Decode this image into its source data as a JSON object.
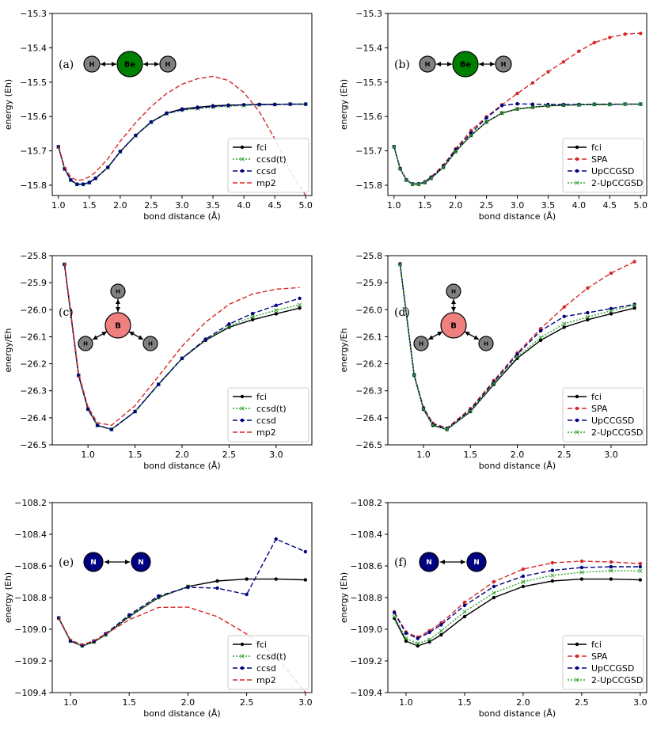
{
  "chart_data": [
    {
      "type": "line",
      "panel_label": "(a)",
      "molecule": "BeH2",
      "atoms": [
        "H",
        "Be",
        "H"
      ],
      "xlabel": "bond distance (Å)",
      "ylabel": "energy (Eh)",
      "xlim": [
        0.9,
        5.1
      ],
      "ylim": [
        -15.83,
        -15.3
      ],
      "xticks": [
        1.0,
        1.5,
        2.0,
        2.5,
        3.0,
        3.5,
        4.0,
        4.5,
        5.0
      ],
      "yticks": [
        -15.8,
        -15.7,
        -15.6,
        -15.5,
        -15.4,
        -15.3
      ],
      "xtick_labels": [
        "1.0",
        "1.5",
        "2.0",
        "2.5",
        "3.0",
        "3.5",
        "4.0",
        "4.5",
        "5.0"
      ],
      "ytick_labels": [
        "−15.8",
        "−15.7",
        "−15.6",
        "−15.5",
        "−15.4",
        "−15.3"
      ],
      "x": [
        1.0,
        1.1,
        1.2,
        1.3,
        1.4,
        1.5,
        1.6,
        1.8,
        2.0,
        2.25,
        2.5,
        2.75,
        3.0,
        3.25,
        3.5,
        3.75,
        4.0,
        4.25,
        4.5,
        4.75,
        5.0
      ],
      "series": [
        {
          "name": "fci",
          "color": "#000000",
          "dash": "",
          "marker": "dot",
          "values": [
            -15.688,
            -15.752,
            -15.785,
            -15.797,
            -15.797,
            -15.792,
            -15.78,
            -15.748,
            -15.702,
            -15.655,
            -15.616,
            -15.59,
            -15.578,
            -15.573,
            -15.569,
            -15.567,
            -15.566,
            -15.565,
            -15.565,
            -15.564,
            -15.564
          ]
        },
        {
          "name": "ccsd(t)",
          "color": "#2ca02c",
          "dash": "2,2",
          "marker": "x",
          "values": [
            -15.689,
            -15.753,
            -15.786,
            -15.798,
            -15.798,
            -15.793,
            -15.781,
            -15.749,
            -15.703,
            -15.656,
            -15.617,
            -15.592,
            -15.582,
            -15.577,
            -15.573,
            -15.57,
            -15.568,
            -15.566,
            -15.565,
            -15.564,
            -15.564
          ]
        },
        {
          "name": "ccsd",
          "color": "#000080",
          "dash": "6,3",
          "marker": "dot",
          "values": [
            -15.688,
            -15.752,
            -15.785,
            -15.797,
            -15.797,
            -15.792,
            -15.78,
            -15.748,
            -15.702,
            -15.655,
            -15.616,
            -15.591,
            -15.58,
            -15.575,
            -15.571,
            -15.568,
            -15.566,
            -15.565,
            -15.565,
            -15.564,
            -15.564
          ]
        },
        {
          "name": "mp2",
          "color": "#d62728",
          "dash": "6,3",
          "marker": "none",
          "values": [
            -15.686,
            -15.748,
            -15.776,
            -15.786,
            -15.784,
            -15.776,
            -15.762,
            -15.723,
            -15.672,
            -15.618,
            -15.571,
            -15.533,
            -15.506,
            -15.49,
            -15.483,
            -15.495,
            -15.53,
            -15.586,
            -15.665,
            -15.76,
            -15.83
          ]
        }
      ]
    },
    {
      "type": "line",
      "panel_label": "(b)",
      "molecule": "BeH2",
      "atoms": [
        "H",
        "Be",
        "H"
      ],
      "xlabel": "bond distance (Å)",
      "ylabel": "energy (Eh)",
      "xlim": [
        0.9,
        5.1
      ],
      "ylim": [
        -15.83,
        -15.3
      ],
      "xticks": [
        1.0,
        1.5,
        2.0,
        2.5,
        3.0,
        3.5,
        4.0,
        4.5,
        5.0
      ],
      "yticks": [
        -15.8,
        -15.7,
        -15.6,
        -15.5,
        -15.4,
        -15.3
      ],
      "xtick_labels": [
        "1.0",
        "1.5",
        "2.0",
        "2.5",
        "3.0",
        "3.5",
        "4.0",
        "4.5",
        "5.0"
      ],
      "ytick_labels": [
        "−15.8",
        "−15.7",
        "−15.6",
        "−15.5",
        "−15.4",
        "−15.3"
      ],
      "x": [
        1.0,
        1.1,
        1.2,
        1.3,
        1.4,
        1.5,
        1.6,
        1.8,
        2.0,
        2.25,
        2.5,
        2.75,
        3.0,
        3.25,
        3.5,
        3.75,
        4.0,
        4.25,
        4.5,
        4.75,
        5.0
      ],
      "series": [
        {
          "name": "fci",
          "color": "#000000",
          "dash": "",
          "marker": "dot",
          "values": [
            -15.688,
            -15.752,
            -15.785,
            -15.797,
            -15.797,
            -15.792,
            -15.78,
            -15.748,
            -15.702,
            -15.655,
            -15.616,
            -15.59,
            -15.578,
            -15.573,
            -15.569,
            -15.567,
            -15.566,
            -15.565,
            -15.565,
            -15.564,
            -15.564
          ]
        },
        {
          "name": "SPA",
          "color": "#d62728",
          "dash": "6,3",
          "marker": "dot",
          "values": [
            -15.688,
            -15.751,
            -15.784,
            -15.796,
            -15.796,
            -15.79,
            -15.776,
            -15.742,
            -15.694,
            -15.641,
            -15.601,
            -15.566,
            -15.533,
            -15.502,
            -15.47,
            -15.441,
            -15.41,
            -15.385,
            -15.37,
            -15.36,
            -15.358
          ]
        },
        {
          "name": "UpCCGSD",
          "color": "#000080",
          "dash": "6,3",
          "marker": "dot",
          "values": [
            -15.688,
            -15.752,
            -15.785,
            -15.796,
            -15.796,
            -15.791,
            -15.778,
            -15.745,
            -15.697,
            -15.648,
            -15.604,
            -15.568,
            -15.563,
            -15.564,
            -15.565,
            -15.565,
            -15.565,
            -15.564,
            -15.564,
            -15.564,
            -15.564
          ]
        },
        {
          "name": "2-UpCCGSD",
          "color": "#2ca02c",
          "dash": "2,2",
          "marker": "x",
          "values": [
            -15.688,
            -15.752,
            -15.785,
            -15.797,
            -15.797,
            -15.792,
            -15.78,
            -15.748,
            -15.702,
            -15.655,
            -15.616,
            -15.59,
            -15.578,
            -15.573,
            -15.569,
            -15.567,
            -15.566,
            -15.565,
            -15.565,
            -15.564,
            -15.564
          ]
        }
      ]
    },
    {
      "type": "line",
      "panel_label": "(c)",
      "molecule": "BH3",
      "atoms": [
        "H",
        "B",
        "H",
        "H"
      ],
      "xlabel": "bond distance (Å)",
      "ylabel": "energy/Eh",
      "xlim": [
        0.62,
        3.38
      ],
      "ylim": [
        -26.5,
        -25.8
      ],
      "xticks": [
        1.0,
        1.5,
        2.0,
        2.5,
        3.0
      ],
      "yticks": [
        -26.5,
        -26.4,
        -26.3,
        -26.2,
        -26.1,
        -26.0,
        -25.9,
        -25.8
      ],
      "xtick_labels": [
        "1.0",
        "1.5",
        "2.0",
        "2.5",
        "3.0"
      ],
      "ytick_labels": [
        "−26.5",
        "−26.4",
        "−26.3",
        "−26.2",
        "−26.1",
        "−26.0",
        "−25.9",
        "−25.8"
      ],
      "x": [
        0.75,
        0.9,
        1.0,
        1.1,
        1.25,
        1.5,
        1.75,
        2.0,
        2.25,
        2.5,
        2.75,
        3.0,
        3.25
      ],
      "series": [
        {
          "name": "fci",
          "color": "#000000",
          "dash": "",
          "marker": "dot",
          "values": [
            -25.832,
            -26.243,
            -26.368,
            -26.428,
            -26.443,
            -26.377,
            -26.276,
            -26.18,
            -26.113,
            -26.065,
            -26.037,
            -26.015,
            -25.994
          ]
        },
        {
          "name": "ccsd(t)",
          "color": "#2ca02c",
          "dash": "2,2",
          "marker": "x",
          "values": [
            -25.832,
            -26.243,
            -26.368,
            -26.428,
            -26.443,
            -26.377,
            -26.276,
            -26.18,
            -26.111,
            -26.061,
            -26.026,
            -26.002,
            -25.982
          ]
        },
        {
          "name": "ccsd",
          "color": "#000080",
          "dash": "6,3",
          "marker": "dot",
          "values": [
            -25.832,
            -26.243,
            -26.368,
            -26.428,
            -26.443,
            -26.377,
            -26.276,
            -26.18,
            -26.109,
            -26.053,
            -26.014,
            -25.984,
            -25.958
          ]
        },
        {
          "name": "mp2",
          "color": "#d62728",
          "dash": "6,3",
          "marker": "none",
          "values": [
            -25.826,
            -26.235,
            -26.36,
            -26.418,
            -26.428,
            -26.355,
            -26.246,
            -26.135,
            -26.046,
            -25.98,
            -25.942,
            -25.924,
            -25.918
          ]
        }
      ]
    },
    {
      "type": "line",
      "panel_label": "(d)",
      "molecule": "BH3",
      "atoms": [
        "H",
        "B",
        "H",
        "H"
      ],
      "xlabel": "bond distance (Å)",
      "ylabel": "energy/Eh",
      "xlim": [
        0.62,
        3.38
      ],
      "ylim": [
        -26.5,
        -25.8
      ],
      "xticks": [
        1.0,
        1.5,
        2.0,
        2.5,
        3.0
      ],
      "yticks": [
        -26.5,
        -26.4,
        -26.3,
        -26.2,
        -26.1,
        -26.0,
        -25.9,
        -25.8
      ],
      "xtick_labels": [
        "1.0",
        "1.5",
        "2.0",
        "2.5",
        "3.0"
      ],
      "ytick_labels": [
        "−26.5",
        "−26.4",
        "−26.3",
        "−26.2",
        "−26.1",
        "−26.0",
        "−25.9",
        "−25.8"
      ],
      "x": [
        0.75,
        0.9,
        1.0,
        1.1,
        1.25,
        1.5,
        1.75,
        2.0,
        2.25,
        2.5,
        2.75,
        3.0,
        3.25
      ],
      "series": [
        {
          "name": "fci",
          "color": "#000000",
          "dash": "",
          "marker": "dot",
          "values": [
            -25.832,
            -26.243,
            -26.368,
            -26.428,
            -26.443,
            -26.377,
            -26.276,
            -26.18,
            -26.113,
            -26.065,
            -26.037,
            -26.015,
            -25.994
          ]
        },
        {
          "name": "SPA",
          "color": "#d62728",
          "dash": "6,3",
          "marker": "dot",
          "values": [
            -25.83,
            -26.24,
            -26.362,
            -26.42,
            -26.438,
            -26.366,
            -26.262,
            -26.16,
            -26.07,
            -25.99,
            -25.92,
            -25.865,
            -25.822
          ]
        },
        {
          "name": "UpCCGSD",
          "color": "#000080",
          "dash": "6,3",
          "marker": "dot",
          "values": [
            -25.831,
            -26.241,
            -26.365,
            -26.424,
            -26.44,
            -26.371,
            -26.267,
            -26.165,
            -26.078,
            -26.025,
            -26.011,
            -25.996,
            -25.98
          ]
        },
        {
          "name": "2-UpCCGSD",
          "color": "#2ca02c",
          "dash": "2,2",
          "marker": "x",
          "values": [
            -25.832,
            -26.242,
            -26.367,
            -26.427,
            -26.442,
            -26.375,
            -26.273,
            -26.174,
            -26.103,
            -26.052,
            -26.027,
            -26.004,
            -25.983
          ]
        }
      ]
    },
    {
      "type": "line",
      "panel_label": "(e)",
      "molecule": "N2",
      "atoms": [
        "N",
        "N"
      ],
      "xlabel": "bond distance (Å)",
      "ylabel": "energy (Eh)",
      "xlim": [
        0.845,
        3.055
      ],
      "ylim": [
        -109.4,
        -108.2
      ],
      "xticks": [
        1.0,
        1.5,
        2.0,
        2.5,
        3.0
      ],
      "yticks": [
        -109.4,
        -109.2,
        -109.0,
        -108.8,
        -108.6,
        -108.4,
        -108.2
      ],
      "xtick_labels": [
        "1.0",
        "1.5",
        "2.0",
        "2.5",
        "3.0"
      ],
      "ytick_labels": [
        "−109.4",
        "−109.2",
        "−109.0",
        "−108.8",
        "−108.6",
        "−108.4",
        "−108.2"
      ],
      "x": [
        0.9,
        1.0,
        1.1,
        1.2,
        1.3,
        1.5,
        1.75,
        2.0,
        2.25,
        2.5,
        2.75,
        3.0
      ],
      "series": [
        {
          "name": "fci",
          "color": "#000000",
          "dash": "",
          "marker": "dot",
          "values": [
            -108.93,
            -109.075,
            -109.105,
            -109.08,
            -109.035,
            -108.92,
            -108.8,
            -108.73,
            -108.695,
            -108.683,
            -108.683,
            -108.688
          ]
        },
        {
          "name": "ccsd(t)",
          "color": "#2ca02c",
          "dash": "2,2",
          "marker": "x",
          "values": [
            -108.93,
            -109.074,
            -109.104,
            -109.079,
            -109.034,
            -108.918,
            -108.798,
            -108.73,
            null,
            null,
            null,
            null
          ]
        },
        {
          "name": "ccsd",
          "color": "#000080",
          "dash": "6,3",
          "marker": "dot",
          "values": [
            -108.928,
            -109.072,
            -109.1,
            -109.074,
            -109.028,
            -108.91,
            -108.79,
            -108.735,
            -108.74,
            -108.78,
            -108.43,
            -108.51
          ]
        },
        {
          "name": "mp2",
          "color": "#d62728",
          "dash": "6,3",
          "marker": "none",
          "values": [
            -108.926,
            -109.068,
            -109.098,
            -109.072,
            -109.03,
            -108.94,
            -108.862,
            -108.86,
            -108.92,
            -109.03,
            -109.17,
            -109.4
          ]
        }
      ]
    },
    {
      "type": "line",
      "panel_label": "(f)",
      "molecule": "N2",
      "atoms": [
        "N",
        "N"
      ],
      "xlabel": "bond distance (Å)",
      "ylabel": "energy (Eh)",
      "xlim": [
        0.845,
        3.055
      ],
      "ylim": [
        -109.4,
        -108.2
      ],
      "xticks": [
        1.0,
        1.5,
        2.0,
        2.5,
        3.0
      ],
      "yticks": [
        -109.4,
        -109.2,
        -109.0,
        -108.8,
        -108.6,
        -108.4,
        -108.2
      ],
      "xtick_labels": [
        "1.0",
        "1.5",
        "2.0",
        "2.5",
        "3.0"
      ],
      "ytick_labels": [
        "−109.4",
        "−109.2",
        "−109.0",
        "−108.8",
        "−108.6",
        "−108.4",
        "−108.2"
      ],
      "x": [
        0.9,
        1.0,
        1.1,
        1.2,
        1.3,
        1.5,
        1.75,
        2.0,
        2.25,
        2.5,
        2.75,
        3.0
      ],
      "series": [
        {
          "name": "fci",
          "color": "#000000",
          "dash": "",
          "marker": "dot",
          "values": [
            -108.93,
            -109.075,
            -109.105,
            -109.08,
            -109.035,
            -108.92,
            -108.8,
            -108.73,
            -108.695,
            -108.683,
            -108.683,
            -108.688
          ]
        },
        {
          "name": "SPA",
          "color": "#d62728",
          "dash": "6,3",
          "marker": "dot",
          "values": [
            -108.89,
            -109.018,
            -109.05,
            -109.01,
            -108.96,
            -108.83,
            -108.7,
            -108.62,
            -108.58,
            -108.57,
            -108.575,
            -108.585
          ]
        },
        {
          "name": "UpCCGSD",
          "color": "#000080",
          "dash": "6,3",
          "marker": "dot",
          "values": [
            -108.895,
            -109.025,
            -109.058,
            -109.02,
            -108.972,
            -108.85,
            -108.73,
            -108.665,
            -108.628,
            -108.61,
            -108.605,
            -108.605
          ]
        },
        {
          "name": "2-UpCCGSD",
          "color": "#2ca02c",
          "dash": "2,2",
          "marker": "x",
          "values": [
            -108.92,
            -109.058,
            -109.09,
            -109.065,
            -109.01,
            -108.89,
            -108.77,
            -108.7,
            -108.66,
            -108.64,
            -108.63,
            -108.632
          ]
        }
      ]
    }
  ],
  "colors": {
    "H": "#808080",
    "Be": "#008000",
    "B": "#f08080",
    "N": "#000080"
  }
}
